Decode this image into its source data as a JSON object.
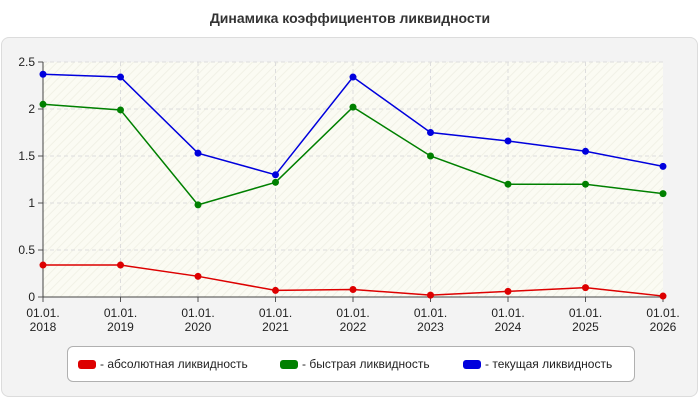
{
  "chart_data": {
    "type": "line",
    "title": "Динамика коэффициентов ликвидности",
    "xlabel": "",
    "ylabel": "",
    "categories": [
      "01.01.\n2018",
      "01.01.\n2019",
      "01.01.\n2020",
      "01.01.\n2021",
      "01.01.\n2022",
      "01.01.\n2023",
      "01.01.\n2024",
      "01.01.\n2025",
      "01.01.\n2026"
    ],
    "ylim": [
      0,
      2.5
    ],
    "yticks": [
      "0",
      "0.5",
      "1",
      "1.5",
      "2",
      "2.5"
    ],
    "grid": true,
    "legend_position": "bottom",
    "series": [
      {
        "name": "- абсолютная ликвидность",
        "color": "#dd0000",
        "values": [
          0.34,
          0.34,
          0.22,
          0.07,
          0.08,
          0.02,
          0.06,
          0.1,
          0.01
        ]
      },
      {
        "name": "- быстрая ликвидность",
        "color": "#008000",
        "values": [
          2.05,
          1.99,
          0.98,
          1.22,
          2.02,
          1.5,
          1.2,
          1.2,
          1.1
        ]
      },
      {
        "name": "- текущая ликвидность",
        "color": "#0000dd",
        "values": [
          2.37,
          2.34,
          1.53,
          1.3,
          2.34,
          1.75,
          1.66,
          1.55,
          1.39
        ]
      }
    ]
  }
}
